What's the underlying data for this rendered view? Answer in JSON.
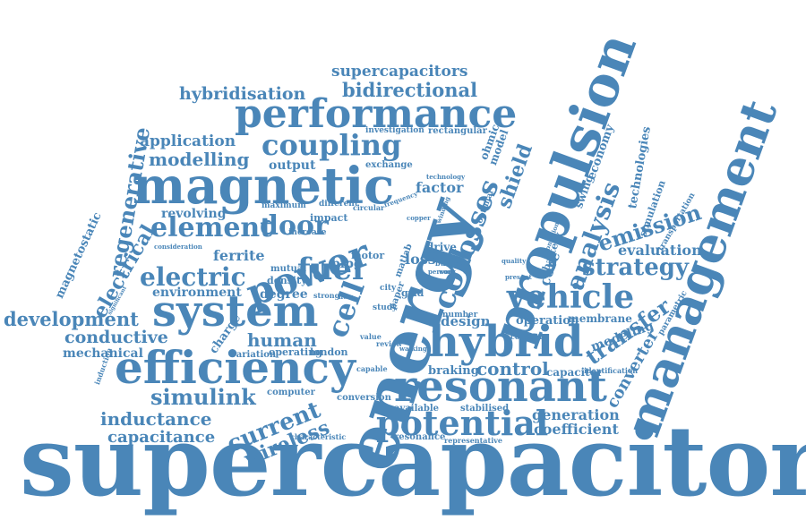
{
  "cloud": {
    "color": "#4a86b8",
    "words": {
      "supercapacitor": "supercapacitor",
      "management": "management",
      "propulsion": "propulsion",
      "energy": "energy",
      "magnetic": "magnetic",
      "performance": "performance",
      "efficiency": "efficiency",
      "system": "system",
      "hybrid": "hybrid",
      "resonant": "resonant",
      "potential": "potential",
      "power": "power",
      "coupling": "coupling",
      "vehicle": "vehicle",
      "strategy": "strategy",
      "emission": "emission",
      "analysis": "analysis",
      "element": "element",
      "fuel": "fuel",
      "cell": "cell",
      "losses": "losses",
      "coil": "coil",
      "shield": "shield",
      "door": "door",
      "electric": "electric",
      "electrical": "electrical",
      "regenerative": "regenerative",
      "development": "development",
      "conductive": "conductive",
      "mechanical": "mechanical",
      "simulink": "simulink",
      "inductance": "inductance",
      "capacitance": "capacitance",
      "current": "current",
      "wireless": "wireless",
      "human": "human",
      "transfer": "transfer",
      "converter": "converter",
      "control": "control",
      "generation": "generation",
      "coefficient": "coefficient",
      "evaluation": "evaluation",
      "supercapacitors": "supercapacitors",
      "bidirectional": "bidirectional",
      "hybridisation": "hybridisation",
      "application": "application",
      "modelling": "modelling",
      "output": "output",
      "factor": "factor",
      "revolving": "revolving",
      "ferrite": "ferrite",
      "environment": "environment",
      "magnetostatic": "magnetostatic",
      "technologies": "technologies",
      "simulation": "simulation",
      "transportation": "transportation",
      "economy": "economy",
      "swing": "swing",
      "battery": "battery",
      "core": "core",
      "membrane": "membrane",
      "operation": "operation",
      "modeling": "modeling",
      "parametric": "parametric",
      "capacitor": "capacitor",
      "identification": "identification",
      "braking": "braking",
      "design": "design",
      "loss": "loss",
      "pipe": "pipe",
      "degree": "degree",
      "density": "density",
      "mutual": "mutual",
      "charge": "charge",
      "variation": "variation",
      "operating": "operating",
      "london": "london",
      "computer": "computer",
      "conversion": "conversion",
      "available": "available",
      "stabilised": "stabilised",
      "resonance": "resonance",
      "representative": "representative",
      "characteristic": "characteristic",
      "exchange": "exchange",
      "investigation": "investigation",
      "rectangular": "rectangular",
      "ohmic": "ohmic",
      "model": "model",
      "technology": "technology",
      "maximum": "maximum",
      "different": "different",
      "circular": "circular",
      "increase": "increase",
      "impact": "impact",
      "motor": "motor",
      "drive": "drive",
      "source": "source",
      "buses": "buses",
      "quality": "quality",
      "present": "present",
      "constant": "constant",
      "city": "city",
      "paper": "paper",
      "study": "study",
      "value": "value",
      "review": "review",
      "walking": "walking",
      "capable": "capable",
      "number": "number",
      "matlab": "matlab",
      "grid": "grid",
      "copper": "copper",
      "strong": "strong",
      "flow": "flow",
      "person": "person",
      "work": "work",
      "consideration": "consideration",
      "significant": "significant",
      "induction": "induction",
      "winding": "winding",
      "optimal": "optimal",
      "frequency": "frequency",
      "condition": "condition"
    }
  }
}
